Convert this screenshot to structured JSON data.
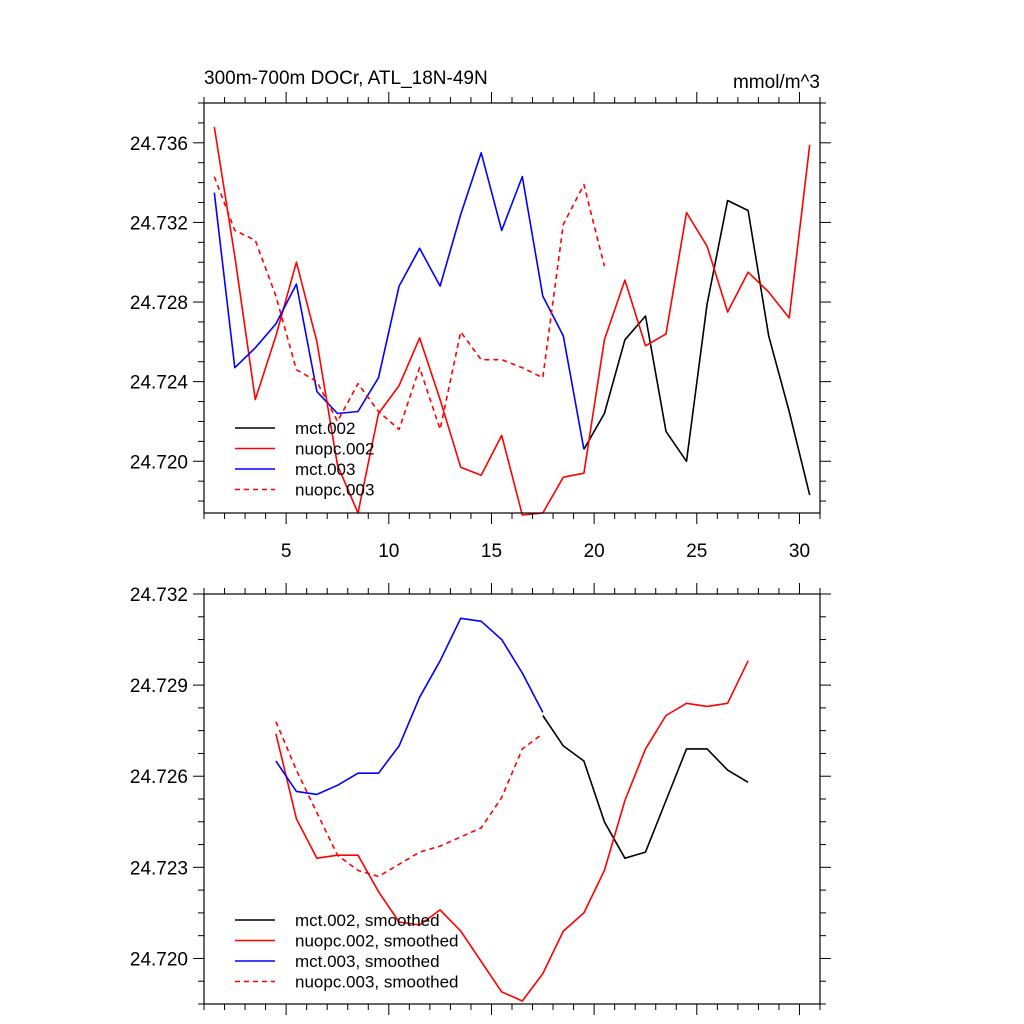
{
  "chart_data": [
    {
      "type": "line",
      "title": "300m-700m DOCr, ATL_18N-49N",
      "units": "mmol/m^3",
      "xlabel": "",
      "ylabel": "",
      "xlim": [
        1,
        31
      ],
      "ylim": [
        24.7174,
        24.738
      ],
      "xticks": [
        5,
        10,
        15,
        20,
        25,
        30
      ],
      "yticks": [
        24.72,
        24.724,
        24.728,
        24.732,
        24.736
      ],
      "ytick_labels": [
        "24.720",
        "24.724",
        "24.728",
        "24.732",
        "24.736"
      ],
      "grid": false,
      "legend_position": "bottom-left",
      "series": [
        {
          "name": "mct.002",
          "color": "#000000",
          "dash": "solid",
          "x": [
            19.5,
            20.5,
            21.5,
            22.5,
            23.5,
            24.5,
            25.5,
            26.5,
            27.5,
            28.5,
            29.5,
            30.5
          ],
          "y": [
            24.7206,
            24.7224,
            24.7261,
            24.7273,
            24.7215,
            24.72,
            24.7279,
            24.7331,
            24.7326,
            24.7263,
            24.7225,
            24.7183
          ]
        },
        {
          "name": "nuopc.002",
          "color": "#ff0000",
          "dash": "solid",
          "x": [
            1.5,
            2.5,
            3.5,
            4.5,
            5.5,
            6.5,
            7.5,
            8.5,
            9.5,
            10.5,
            11.5,
            12.5,
            13.5,
            14.5,
            15.5,
            16.5,
            17.5,
            18.5,
            19.5,
            20.5,
            21.5,
            22.5,
            23.5,
            24.5,
            25.5,
            26.5,
            27.5,
            28.5,
            29.5,
            30.5
          ],
          "y": [
            24.7368,
            24.7303,
            24.7231,
            24.7263,
            24.73,
            24.726,
            24.7198,
            24.7174,
            24.7224,
            24.7238,
            24.7262,
            24.7231,
            24.7197,
            24.7193,
            24.7213,
            24.7173,
            24.7174,
            24.7192,
            24.7194,
            24.7261,
            24.7291,
            24.7258,
            24.7264,
            24.7325,
            24.7308,
            24.7275,
            24.7295,
            24.7285,
            24.7272,
            24.7359
          ]
        },
        {
          "name": "mct.003",
          "color": "#0000ff",
          "dash": "solid",
          "x": [
            1.5,
            2.5,
            3.5,
            4.5,
            5.5,
            6.5,
            7.5,
            8.5,
            9.5,
            10.5,
            11.5,
            12.5,
            13.5,
            14.5,
            15.5,
            16.5,
            17.5,
            18.5,
            19.5
          ],
          "y": [
            24.7335,
            24.7247,
            24.7257,
            24.7269,
            24.7289,
            24.7235,
            24.7224,
            24.7225,
            24.7242,
            24.7288,
            24.7307,
            24.7288,
            24.7324,
            24.7355,
            24.7316,
            24.7343,
            24.7283,
            24.7263,
            24.7206
          ]
        },
        {
          "name": "nuopc.003",
          "color": "#ff0000",
          "dash": "dashed",
          "x": [
            1.5,
            2.5,
            3.5,
            4.5,
            5.5,
            6.5,
            7.5,
            8.5,
            9.5,
            10.5,
            11.5,
            12.5,
            13.5,
            14.5,
            15.5,
            16.5,
            17.5,
            18.5,
            19.5,
            20.5
          ],
          "y": [
            24.7343,
            24.7316,
            24.7311,
            24.7283,
            24.7246,
            24.724,
            24.722,
            24.7239,
            24.7225,
            24.7216,
            24.7247,
            24.7216,
            24.7265,
            24.7251,
            24.7251,
            24.7247,
            24.7242,
            24.7319,
            24.7339,
            24.7298
          ]
        }
      ]
    },
    {
      "type": "line",
      "title": "",
      "xlabel": "",
      "ylabel": "",
      "xlim": [
        1,
        31
      ],
      "ylim": [
        24.7185,
        24.732
      ],
      "xticks": [
        5,
        10,
        15,
        20,
        25,
        30
      ],
      "yticks": [
        24.72,
        24.723,
        24.726,
        24.729,
        24.732
      ],
      "ytick_labels": [
        "24.720",
        "24.723",
        "24.726",
        "24.729",
        "24.732"
      ],
      "grid": false,
      "legend_position": "bottom-left",
      "series": [
        {
          "name": "mct.002, smoothed",
          "color": "#000000",
          "dash": "solid",
          "x": [
            17.5,
            18.5,
            19.5,
            20.5,
            21.5,
            22.5,
            23.5,
            24.5,
            25.5,
            26.5,
            27.5
          ],
          "y": [
            24.728,
            24.727,
            24.7265,
            24.7245,
            24.7233,
            24.7235,
            24.7252,
            24.7269,
            24.7269,
            24.7262,
            24.7258
          ]
        },
        {
          "name": "nuopc.002, smoothed",
          "color": "#ff0000",
          "dash": "solid",
          "x": [
            4.5,
            5.5,
            6.5,
            7.5,
            8.5,
            9.5,
            10.5,
            11.5,
            12.5,
            13.5,
            14.5,
            15.5,
            16.5,
            17.5,
            18.5,
            19.5,
            20.5,
            21.5,
            22.5,
            23.5,
            24.5,
            25.5,
            26.5,
            27.5
          ],
          "y": [
            24.7274,
            24.7246,
            24.7233,
            24.7234,
            24.7234,
            24.7222,
            24.7212,
            24.7211,
            24.7216,
            24.7209,
            24.7199,
            24.7189,
            24.7186,
            24.7195,
            24.7209,
            24.7215,
            24.7229,
            24.7252,
            24.7269,
            24.728,
            24.7284,
            24.7283,
            24.7284,
            24.7298
          ]
        },
        {
          "name": "mct.003, smoothed",
          "color": "#0000ff",
          "dash": "solid",
          "x": [
            4.5,
            5.5,
            6.5,
            7.5,
            8.5,
            9.5,
            10.5,
            11.5,
            12.5,
            13.5,
            14.5,
            15.5,
            16.5,
            17.5
          ],
          "y": [
            24.7265,
            24.7255,
            24.7254,
            24.7257,
            24.7261,
            24.7261,
            24.727,
            24.7286,
            24.7298,
            24.7312,
            24.7311,
            24.7305,
            24.7294,
            24.7281
          ]
        },
        {
          "name": "nuopc.003, smoothed",
          "color": "#ff0000",
          "dash": "dashed",
          "x": [
            4.5,
            5.5,
            6.5,
            7.5,
            8.5,
            9.5,
            10.5,
            11.5,
            12.5,
            13.5,
            14.5,
            15.5,
            16.5,
            17.5
          ],
          "y": [
            24.7278,
            24.7262,
            24.7248,
            24.7234,
            24.7229,
            24.7227,
            24.7231,
            24.7235,
            24.7237,
            24.724,
            24.7243,
            24.7253,
            24.7269,
            24.7274
          ]
        }
      ]
    }
  ]
}
